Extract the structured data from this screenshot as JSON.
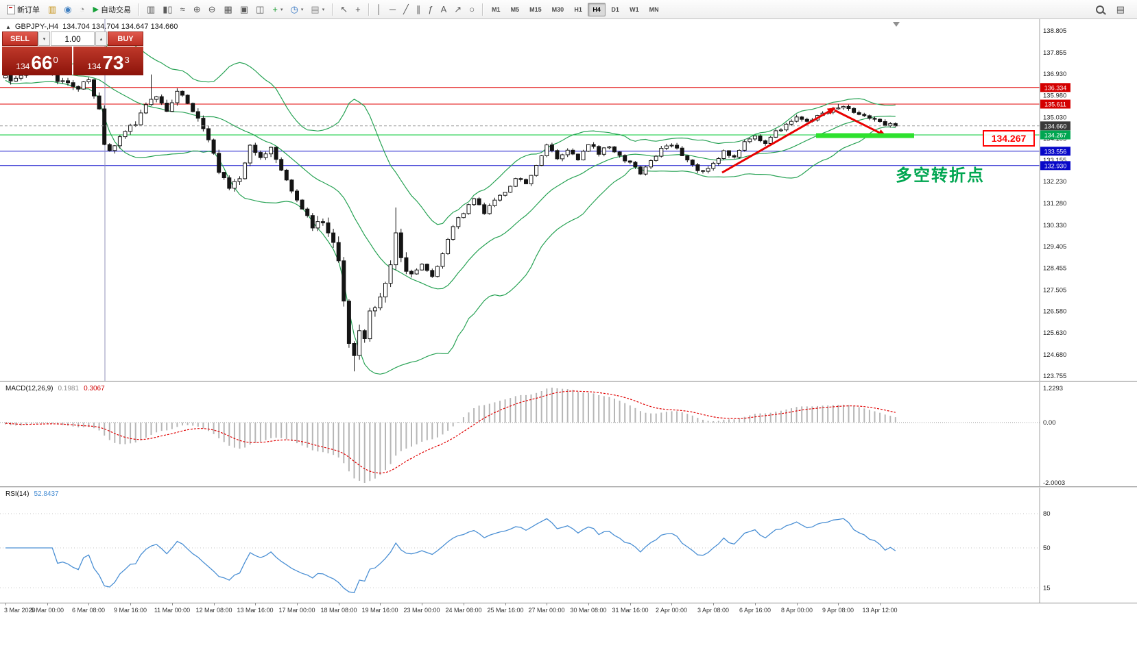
{
  "toolbar": {
    "new_order_label": "新订单",
    "autotrading_label": "自动交易",
    "autotrading_icon": "▶",
    "timeframes": [
      "M1",
      "M5",
      "M15",
      "M30",
      "H1",
      "H4",
      "D1",
      "W1",
      "MN"
    ],
    "active_timeframe": "H4",
    "icon_groups": {
      "left": [
        {
          "n": "charts-icon",
          "g": "▥",
          "c": "#c7941c"
        },
        {
          "n": "profiles-icon",
          "g": "◉",
          "c": "#3f7fc1"
        },
        {
          "n": "ticks-icon",
          "g": "◔",
          "c": "#888888"
        }
      ],
      "chart_modes": [
        {
          "n": "bar-chart-mode-icon",
          "g": "▥"
        },
        {
          "n": "candlestick-mode-icon",
          "g": "▮▯"
        },
        {
          "n": "line-chart-mode-icon",
          "g": "≈"
        }
      ],
      "zoom": [
        {
          "n": "zoom-in-icon",
          "g": "⊕"
        },
        {
          "n": "zoom-out-icon",
          "g": "⊖"
        }
      ],
      "windows": [
        {
          "n": "tile-windows-icon",
          "g": "▦"
        },
        {
          "n": "cascade-windows-icon",
          "g": "▣"
        },
        {
          "n": "arrange-windows-icon",
          "g": "◫"
        }
      ],
      "objects": [
        {
          "n": "add-indicator-icon",
          "g": "+",
          "c": "#1d9e33",
          "caret": true
        },
        {
          "n": "period-selector-icon",
          "g": "◷",
          "c": "#2a6fc0",
          "caret": true
        },
        {
          "n": "template-icon",
          "g": "▤",
          "c": "#8a8a8a",
          "caret": true
        }
      ],
      "cursor": [
        {
          "n": "cursor-icon",
          "g": "↖"
        },
        {
          "n": "crosshair-icon",
          "g": "+"
        }
      ],
      "draw": [
        {
          "n": "vertical-line-icon",
          "g": "│"
        },
        {
          "n": "horizontal-line-icon",
          "g": "─"
        },
        {
          "n": "trendline-icon",
          "g": "╱"
        },
        {
          "n": "channel-icon",
          "g": "∥"
        },
        {
          "n": "fibonacci-icon",
          "g": "ƒ"
        },
        {
          "n": "text-tool-icon",
          "g": "A"
        },
        {
          "n": "arrow-tool-icon",
          "g": "↗"
        },
        {
          "n": "shapes-icon",
          "g": "○"
        }
      ],
      "right": [
        {
          "n": "search-icon",
          "g": "",
          "mag": true
        },
        {
          "n": "window-icon",
          "g": "▤"
        }
      ]
    }
  },
  "trade_panel": {
    "sell_label": "SELL",
    "buy_label": "BUY",
    "volume": "1.00",
    "spin_down": "▾",
    "spin_up": "▴",
    "sell_price": {
      "prefix": "134",
      "big": "66",
      "sup": "0"
    },
    "buy_price": {
      "prefix": "134",
      "big": "73",
      "sup": "3"
    }
  },
  "chart": {
    "collapse_icon": "▲",
    "title": "GBPJPY-,H4",
    "ohlc": "134.704 134.704 134.647 134.660",
    "price_axis": [
      "138.805",
      "137.855",
      "136.930",
      "135.980",
      "135.030",
      "134.105",
      "133.155",
      "132.230",
      "131.280",
      "130.330",
      "129.405",
      "128.455",
      "127.505",
      "126.580",
      "125.630",
      "124.680",
      "123.755"
    ],
    "axis_badges": [
      {
        "value": "136.334",
        "bg": "#d40000"
      },
      {
        "value": "135.611",
        "bg": "#d40000"
      },
      {
        "value": "134.660",
        "bg": "#3a3a3a"
      },
      {
        "value": "134.267",
        "bg": "#00a651"
      },
      {
        "value": "133.556",
        "bg": "#0808c8"
      },
      {
        "value": "132.930",
        "bg": "#0808c8"
      }
    ],
    "annotations": {
      "price_label": "134.267",
      "turning_point": "多空转折点"
    }
  },
  "macd": {
    "label": "MACD(12,26,9)",
    "value_main": "0.1981",
    "value_signal": "0.3067",
    "scale_labels": [
      "1.2293",
      "0.00",
      "-2.0003"
    ]
  },
  "rsi": {
    "label": "RSI(14)",
    "value": "52.8437",
    "levels": [
      "80",
      "50",
      "15"
    ]
  },
  "time_axis": [
    {
      "t": "3 Mar 2020",
      "i": 4
    },
    {
      "t": "5 Mar 00:00",
      "i": 12
    },
    {
      "t": "6 Mar 08:00",
      "i": 20
    },
    {
      "t": "9 Mar 16:00",
      "i": 28
    },
    {
      "t": "11 Mar 00:00",
      "i": 36
    },
    {
      "t": "12 Mar 08:00",
      "i": 44
    },
    {
      "t": "13 Mar 16:00",
      "i": 52
    },
    {
      "t": "17 Mar 00:00",
      "i": 60
    },
    {
      "t": "18 Mar 08:00",
      "i": 68
    },
    {
      "t": "19 Mar 16:00",
      "i": 76
    },
    {
      "t": "23 Mar 00:00",
      "i": 84
    },
    {
      "t": "24 Mar 08:00",
      "i": 92
    },
    {
      "t": "25 Mar 16:00",
      "i": 100
    },
    {
      "t": "27 Mar 00:00",
      "i": 108
    },
    {
      "t": "30 Mar 08:00",
      "i": 116
    },
    {
      "t": "31 Mar 16:00",
      "i": 124
    },
    {
      "t": "2 Apr 00:00",
      "i": 132
    },
    {
      "t": "3 Apr 08:00",
      "i": 140
    },
    {
      "t": "6 Apr 16:00",
      "i": 148
    },
    {
      "t": "8 Apr 00:00",
      "i": 156
    },
    {
      "t": "9 Apr 08:00",
      "i": 164
    },
    {
      "t": "13 Apr 12:00",
      "i": 172
    }
  ],
  "chart_data": {
    "type": "candlestick",
    "symbol": "GBPJPY-",
    "timeframe": "H4",
    "bars": 176,
    "ylim": [
      123.55,
      139.31
    ],
    "current_price": 134.66,
    "ohlc_current": {
      "open": 134.704,
      "high": 134.704,
      "low": 134.647,
      "close": 134.66
    },
    "close_anchors": [
      [
        0,
        137.1
      ],
      [
        5,
        136.7
      ],
      [
        9,
        137.2
      ],
      [
        13,
        136.8
      ],
      [
        17,
        136.3
      ],
      [
        20,
        136.55
      ],
      [
        22,
        135.4
      ],
      [
        23,
        133.9
      ],
      [
        24,
        133.5
      ],
      [
        26,
        134.3
      ],
      [
        29,
        134.7
      ],
      [
        31,
        135.6
      ],
      [
        33,
        135.9
      ],
      [
        35,
        135.3
      ],
      [
        37,
        136.25
      ],
      [
        39,
        135.7
      ],
      [
        41,
        135.1
      ],
      [
        43,
        134.0
      ],
      [
        45,
        132.7
      ],
      [
        47,
        131.9
      ],
      [
        49,
        132.4
      ],
      [
        51,
        133.8
      ],
      [
        53,
        133.3
      ],
      [
        55,
        133.7
      ],
      [
        57,
        132.8
      ],
      [
        59,
        131.9
      ],
      [
        61,
        131.0
      ],
      [
        63,
        130.3
      ],
      [
        65,
        130.6
      ],
      [
        67,
        129.6
      ],
      [
        68,
        128.7
      ],
      [
        69,
        126.8
      ],
      [
        70,
        125.3
      ],
      [
        71,
        124.7
      ],
      [
        72,
        125.9
      ],
      [
        73,
        125.3
      ],
      [
        74,
        126.5
      ],
      [
        76,
        127.3
      ],
      [
        78,
        128.6
      ],
      [
        79,
        129.9
      ],
      [
        80,
        128.7
      ],
      [
        82,
        128.2
      ],
      [
        84,
        128.6
      ],
      [
        86,
        128.1
      ],
      [
        88,
        129.1
      ],
      [
        90,
        130.3
      ],
      [
        92,
        130.9
      ],
      [
        94,
        131.5
      ],
      [
        96,
        130.9
      ],
      [
        98,
        131.4
      ],
      [
        100,
        131.8
      ],
      [
        102,
        132.4
      ],
      [
        104,
        132.1
      ],
      [
        106,
        132.9
      ],
      [
        108,
        133.8
      ],
      [
        110,
        133.3
      ],
      [
        112,
        133.6
      ],
      [
        114,
        133.2
      ],
      [
        116,
        133.9
      ],
      [
        118,
        133.5
      ],
      [
        120,
        133.8
      ],
      [
        122,
        133.4
      ],
      [
        124,
        133.0
      ],
      [
        126,
        132.6
      ],
      [
        128,
        133.1
      ],
      [
        130,
        133.7
      ],
      [
        132,
        133.9
      ],
      [
        134,
        133.4
      ],
      [
        136,
        132.9
      ],
      [
        138,
        132.6
      ],
      [
        140,
        132.95
      ],
      [
        142,
        133.5
      ],
      [
        144,
        133.3
      ],
      [
        146,
        133.9
      ],
      [
        148,
        134.2
      ],
      [
        150,
        133.95
      ],
      [
        152,
        134.4
      ],
      [
        154,
        134.7
      ],
      [
        156,
        135.0
      ],
      [
        158,
        134.85
      ],
      [
        160,
        135.1
      ],
      [
        162,
        135.3
      ],
      [
        164,
        135.5
      ],
      [
        166,
        135.4
      ],
      [
        168,
        135.15
      ],
      [
        170,
        134.95
      ],
      [
        172,
        134.8
      ],
      [
        175,
        134.66
      ]
    ],
    "wick_overrides": {
      "32": {
        "high": 136.9
      },
      "71": {
        "low": 123.96
      },
      "79": {
        "high": 131.1
      },
      "164": {
        "high": 135.62
      }
    },
    "indicators": {
      "bollinger": {
        "period": 20,
        "deviation": 2
      },
      "macd": {
        "fast": 12,
        "slow": 26,
        "signal": 9,
        "current_main": 0.1981,
        "current_signal": 0.3067,
        "scale_max": 1.2293,
        "scale_min": -2.0003
      },
      "rsi": {
        "period": 14,
        "current": 52.8437,
        "levels": [
          80,
          50,
          15
        ]
      }
    },
    "horizontal_lines": [
      {
        "value": 136.334,
        "color": "#e00000"
      },
      {
        "value": 135.611,
        "color": "#e00000"
      },
      {
        "value": 134.267,
        "color": "#00c832"
      },
      {
        "value": 133.556,
        "color": "#1414cc"
      },
      {
        "value": 132.93,
        "color": "#1414cc"
      }
    ],
    "colors": {
      "bollinger": "#27a254",
      "bull": "#ffffff",
      "bear": "#141414",
      "wick": "#141414",
      "macd_hist": "#b6b6b6",
      "macd_signal": "#e00000",
      "rsi_line": "#4a8fd4",
      "arrow": "#e80000",
      "highlight": "#2ee12e",
      "vertical_line": "#9090b8",
      "current_price_line": "#9a9a9a"
    }
  }
}
